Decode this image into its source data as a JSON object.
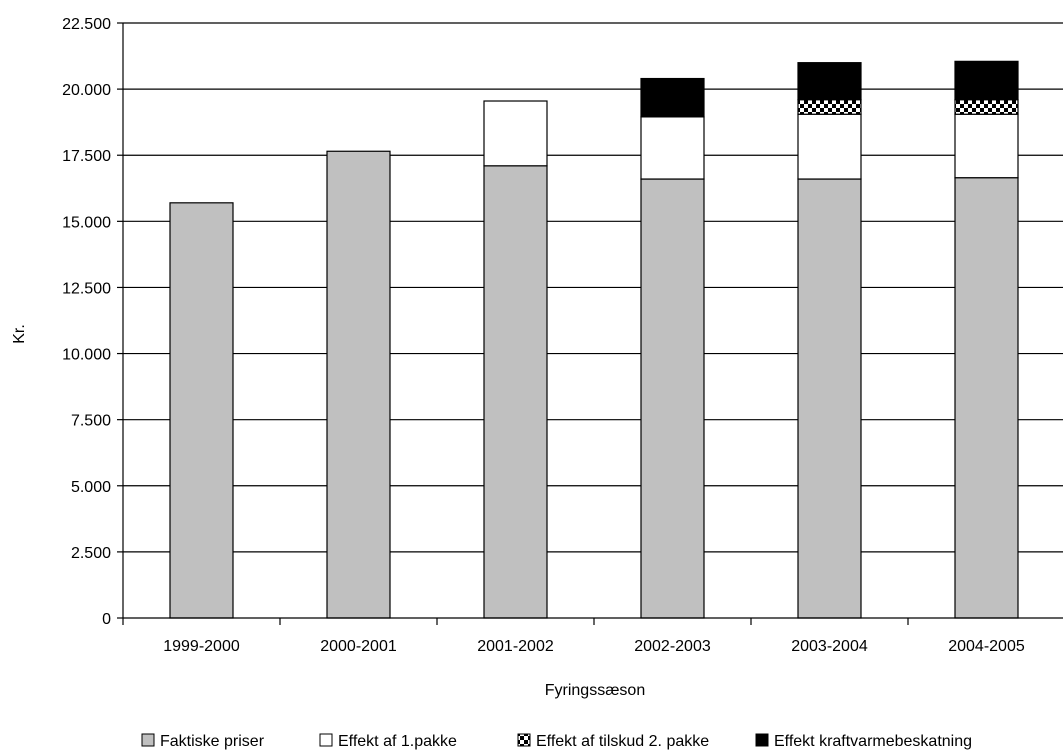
{
  "chart_data": {
    "type": "bar",
    "stacked": true,
    "title": "",
    "xlabel": "Fyringssæson",
    "ylabel": "Kr.",
    "ylim": [
      0,
      22500
    ],
    "yticks": [
      0,
      2500,
      5000,
      7500,
      10000,
      12500,
      15000,
      17500,
      20000,
      22500
    ],
    "ytick_labels": [
      "0",
      "2.500",
      "5.000",
      "7.500",
      "10.000",
      "12.500",
      "15.000",
      "17.500",
      "20.000",
      "22.500"
    ],
    "grid": "horizontal",
    "legend_position": "bottom",
    "categories": [
      "1999-2000",
      "2000-2001",
      "2001-2002",
      "2002-2003",
      "2003-2004",
      "2004-2005"
    ],
    "series": [
      {
        "name": "Faktiske priser",
        "fill": "#c0c0c0",
        "pattern": "solid",
        "values": [
          15700,
          17650,
          17100,
          16600,
          16600,
          16650
        ]
      },
      {
        "name": "Effekt af 1.pakke",
        "fill": "#ffffff",
        "pattern": "solid",
        "values": [
          0,
          0,
          2450,
          2350,
          2450,
          2400
        ]
      },
      {
        "name": "Effekt af tilskud 2. pakke",
        "fill": "#000000",
        "pattern": "checker",
        "values": [
          0,
          0,
          0,
          0,
          550,
          550
        ]
      },
      {
        "name": "Effekt kraftvarmebeskatning",
        "fill": "#000000",
        "pattern": "solid",
        "values": [
          0,
          0,
          0,
          1450,
          1400,
          1450
        ]
      }
    ]
  }
}
